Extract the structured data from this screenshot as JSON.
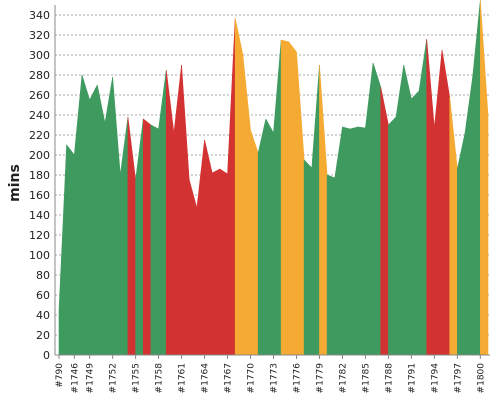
{
  "chart_data": {
    "type": "area",
    "ylabel": "mins",
    "xlabel": "",
    "title": "",
    "ylim": [
      0,
      355
    ],
    "yticks": [
      0,
      20,
      40,
      60,
      80,
      100,
      120,
      140,
      160,
      180,
      200,
      220,
      240,
      260,
      280,
      300,
      320,
      340
    ],
    "grid": true,
    "colors": {
      "pass": "#3f9a5f",
      "fail": "#d33232",
      "unstable": "#f4aa33"
    },
    "x_tick_labels": [
      {
        "i": 0,
        "label": "#790"
      },
      {
        "i": 2,
        "label": "#1746"
      },
      {
        "i": 4,
        "label": "#1749"
      },
      {
        "i": 7,
        "label": "#1752"
      },
      {
        "i": 10,
        "label": "#1755"
      },
      {
        "i": 13,
        "label": "#1758"
      },
      {
        "i": 16,
        "label": "#1761"
      },
      {
        "i": 19,
        "label": "#1764"
      },
      {
        "i": 22,
        "label": "#1767"
      },
      {
        "i": 25,
        "label": "#1770"
      },
      {
        "i": 28,
        "label": "#1773"
      },
      {
        "i": 31,
        "label": "#1776"
      },
      {
        "i": 34,
        "label": "#1779"
      },
      {
        "i": 37,
        "label": "#1782"
      },
      {
        "i": 40,
        "label": "#1785"
      },
      {
        "i": 43,
        "label": "#1788"
      },
      {
        "i": 46,
        "label": "#1791"
      },
      {
        "i": 49,
        "label": "#1794"
      },
      {
        "i": 52,
        "label": "#1797"
      },
      {
        "i": 55,
        "label": "#1800"
      }
    ],
    "values": [
      45,
      210,
      200,
      280,
      255,
      270,
      232,
      278,
      180,
      238,
      175,
      236,
      230,
      226,
      285,
      222,
      290,
      175,
      147,
      215,
      182,
      186,
      181,
      337,
      300,
      225,
      202,
      236,
      222,
      315,
      313,
      303,
      195,
      187,
      290,
      180,
      177,
      228,
      226,
      228,
      227,
      292,
      268,
      230,
      238,
      290,
      256,
      264,
      316,
      227,
      305,
      258,
      186,
      222,
      278,
      355,
      240
    ],
    "status": [
      "pass",
      "pass",
      "pass",
      "pass",
      "pass",
      "pass",
      "pass",
      "pass",
      "pass",
      "fail",
      "pass",
      "fail",
      "pass",
      "pass",
      "fail",
      "fail",
      "fail",
      "fail",
      "fail",
      "fail",
      "fail",
      "fail",
      "fail",
      "unstable",
      "unstable",
      "unstable",
      "pass",
      "pass",
      "pass",
      "unstable",
      "unstable",
      "unstable",
      "pass",
      "pass",
      "unstable",
      "pass",
      "pass",
      "pass",
      "pass",
      "pass",
      "pass",
      "pass",
      "fail",
      "pass",
      "pass",
      "pass",
      "pass",
      "pass",
      "fail",
      "fail",
      "fail",
      "unstable",
      "pass",
      "pass",
      "pass",
      "unstable",
      "pass"
    ]
  }
}
